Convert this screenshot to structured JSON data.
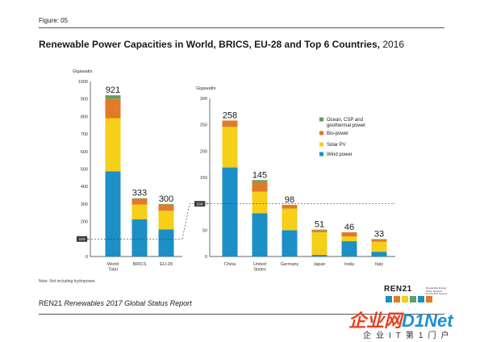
{
  "figure_label": "Figure: 05",
  "title": {
    "main": "Renewable Power Capacities in World, BRICS, EU-28 and Top 6 Countries,",
    "year": "2016"
  },
  "note": "Note: Not including hydropower.",
  "footer": {
    "org": "REN21",
    "publication": "Renewables 2017 Global Status Report"
  },
  "logo": {
    "name": "REN21",
    "tagline": [
      "Renewable Energy",
      "Policy Network",
      "for the 21st Century"
    ]
  },
  "watermark": {
    "main": "企业网",
    "net": "D1Net",
    "sub": "企业IT第1门户"
  },
  "colors": {
    "ocean": "#5aa06a",
    "bio": "#e07b28",
    "solar": "#f6cf19",
    "wind": "#1b8fc6",
    "axis": "#333333",
    "grid": "#d0d0d0"
  },
  "chart_data": [
    {
      "type": "bar",
      "stacked": true,
      "ylabel": "Gigawatts",
      "ylim": [
        0,
        1000
      ],
      "yticks": [
        0,
        100,
        200,
        300,
        400,
        500,
        600,
        700,
        800,
        900,
        1000
      ],
      "categories": [
        [
          "World",
          "Total"
        ],
        [
          "BRICS"
        ],
        [
          "EU-28"
        ]
      ],
      "totals": [
        921,
        333,
        300
      ],
      "reference_line": {
        "value": 100,
        "label": "100",
        "style": "dashed"
      },
      "series": [
        {
          "name": "Wind power",
          "color": "wind",
          "values": [
            487,
            212,
            155
          ]
        },
        {
          "name": "Solar PV",
          "color": "solar",
          "values": [
            303,
            85,
            106
          ]
        },
        {
          "name": "Bio-power",
          "color": "bio",
          "values": [
            112,
            33,
            36
          ]
        },
        {
          "name": "Ocean, CSP and geothermal power",
          "color": "ocean",
          "values": [
            19,
            3,
            3
          ]
        }
      ]
    },
    {
      "type": "bar",
      "stacked": true,
      "ylabel": "Gigawatts",
      "ylim": [
        0,
        300
      ],
      "yticks": [
        0,
        50,
        100,
        150,
        200,
        250,
        300
      ],
      "categories": [
        [
          "China"
        ],
        [
          "United",
          "States"
        ],
        [
          "Germany"
        ],
        [
          "Japan"
        ],
        [
          "India"
        ],
        [
          "Italy"
        ]
      ],
      "totals": [
        258,
        145,
        98,
        51,
        46,
        33
      ],
      "reference_line": {
        "value": 100,
        "label": "100",
        "style": "dashed"
      },
      "legend": {
        "position": "top-right"
      },
      "series": [
        {
          "name": "Wind power",
          "color": "wind",
          "values": [
            169,
            82,
            50,
            3,
            29,
            9
          ]
        },
        {
          "name": "Solar PV",
          "color": "solar",
          "values": [
            77,
            41,
            41,
            43,
            9,
            19
          ]
        },
        {
          "name": "Bio-power",
          "color": "bio",
          "values": [
            12,
            18,
            7,
            4,
            8,
            4
          ]
        },
        {
          "name": "Ocean, CSP and geothermal power",
          "color": "ocean",
          "values": [
            0,
            4,
            0,
            1,
            0,
            1
          ]
        }
      ]
    }
  ]
}
